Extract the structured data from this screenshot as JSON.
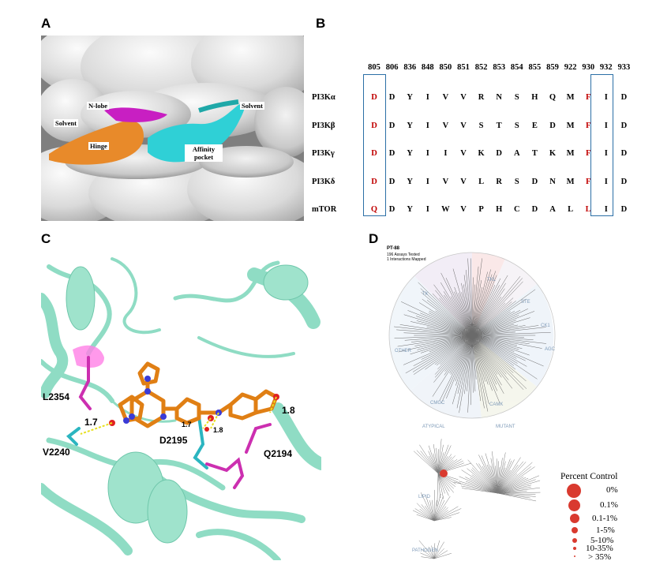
{
  "panels": {
    "a": "A",
    "b": "B",
    "c": "C",
    "d": "D"
  },
  "panel_a": {
    "labels": {
      "nlobe": "N-lobe",
      "solvent_left": "Solvent",
      "hinge": "Hinge",
      "affinity": "Affinity pocket",
      "solvent_right": "Solvent"
    },
    "colors": {
      "nlobe": "#c81fc2",
      "hinge": "#e88a2a",
      "affinity": "#2fd0d6",
      "surface": "#d6d6d6"
    }
  },
  "panel_b": {
    "residues": [
      "805",
      "806",
      "836",
      "848",
      "850",
      "851",
      "852",
      "853",
      "854",
      "855",
      "859",
      "922",
      "930",
      "932",
      "933"
    ],
    "rows": [
      {
        "name": "PI3Kα",
        "cells": [
          "D",
          "D",
          "Y",
          "I",
          "V",
          "V",
          "R",
          "N",
          "S",
          "H",
          "Q",
          "M",
          "F",
          "I",
          "D"
        ]
      },
      {
        "name": "PI3Kβ",
        "cells": [
          "D",
          "D",
          "Y",
          "I",
          "V",
          "V",
          "S",
          "T",
          "S",
          "E",
          "D",
          "M",
          "F",
          "I",
          "D"
        ]
      },
      {
        "name": "PI3Kγ",
        "cells": [
          "D",
          "D",
          "Y",
          "I",
          "I",
          "V",
          "K",
          "D",
          "A",
          "T",
          "K",
          "M",
          "F",
          "I",
          "D"
        ]
      },
      {
        "name": "PI3Kδ",
        "cells": [
          "D",
          "D",
          "Y",
          "I",
          "V",
          "V",
          "L",
          "R",
          "S",
          "D",
          "N",
          "M",
          "F",
          "I",
          "D"
        ]
      },
      {
        "name": "mTOR",
        "cells": [
          "Q",
          "D",
          "Y",
          "I",
          "W",
          "V",
          "P",
          "H",
          "C",
          "D",
          "A",
          "L",
          "L",
          "I",
          "D"
        ]
      }
    ],
    "highlight_columns": [
      "805",
      "930"
    ],
    "highlight_color": "#c00000"
  },
  "panel_c": {
    "labels": {
      "l2354": "L2354",
      "v2240": "V2240",
      "d2195": "D2195",
      "q2194": "Q2194",
      "d_17a": "1.7",
      "d_17b": "1.7",
      "d_18a": "1.8",
      "d_18b": "1.8"
    },
    "colors": {
      "cartoon": "#8fdcc4",
      "ligand": "#e07f14",
      "nitrogen": "#3b3bd6",
      "oxygen": "#e02020",
      "magenta": "#cc2fb0",
      "cyan": "#2bb5c0"
    }
  },
  "panel_d": {
    "header": {
      "compound": "PT-88",
      "line1": "196 Assays Tested",
      "line2": "1 Interactions Mapped"
    },
    "groups": [
      "TK",
      "TKL",
      "STE",
      "CK1",
      "AGC",
      "CAMK",
      "CMGC",
      "OTHER"
    ],
    "subtrees": [
      "ATYPICAL",
      "MUTANT",
      "LIPID",
      "PATHOGEN"
    ],
    "legend": {
      "title": "Percent Control",
      "items": [
        "0%",
        "0.1%",
        "0.1-1%",
        "1-5%",
        "5-10%",
        "10-35%",
        "> 35%"
      ]
    },
    "hit_color": "#d93a2f"
  }
}
